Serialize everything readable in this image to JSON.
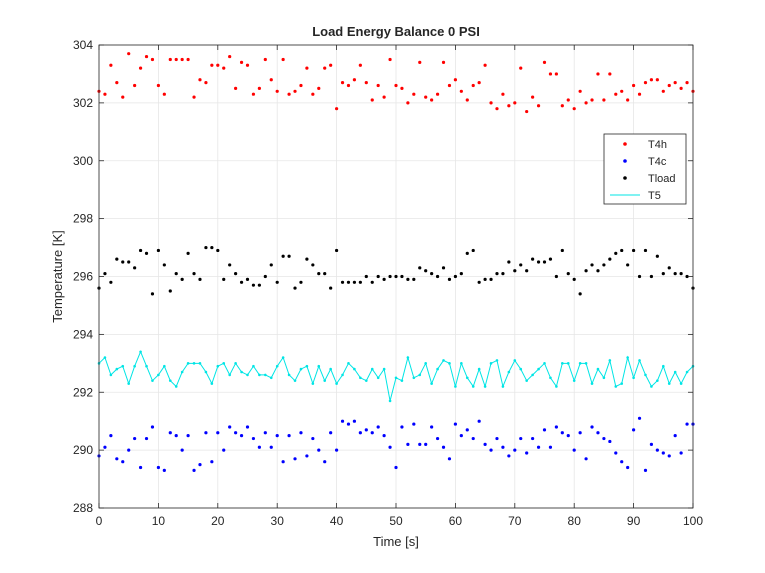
{
  "chart_data": {
    "type": "scatter",
    "title": "Load Energy Balance 0 PSI",
    "xlabel": "Time [s]",
    "ylabel": "Temperature [K]",
    "xlim": [
      0,
      100
    ],
    "ylim": [
      288,
      304
    ],
    "xticks": [
      0,
      10,
      20,
      30,
      40,
      50,
      60,
      70,
      80,
      90,
      100
    ],
    "yticks": [
      288,
      290,
      292,
      294,
      296,
      298,
      300,
      302,
      304
    ],
    "grid": true,
    "legend_position": "top-right",
    "x": [
      0,
      1,
      2,
      3,
      4,
      5,
      6,
      7,
      8,
      9,
      10,
      11,
      12,
      13,
      14,
      15,
      16,
      17,
      18,
      19,
      20,
      21,
      22,
      23,
      24,
      25,
      26,
      27,
      28,
      29,
      30,
      31,
      32,
      33,
      34,
      35,
      36,
      37,
      38,
      39,
      40,
      41,
      42,
      43,
      44,
      45,
      46,
      47,
      48,
      49,
      50,
      51,
      52,
      53,
      54,
      55,
      56,
      57,
      58,
      59,
      60,
      61,
      62,
      63,
      64,
      65,
      66,
      67,
      68,
      69,
      70,
      71,
      72,
      73,
      74,
      75,
      76,
      77,
      78,
      79,
      80,
      81,
      82,
      83,
      84,
      85,
      86,
      87,
      88,
      89,
      90,
      91,
      92,
      93,
      94,
      95,
      96,
      97,
      98,
      99,
      100
    ],
    "series": [
      {
        "name": "T4h",
        "style": "dots",
        "color": "#ff0000",
        "values": [
          302.4,
          302.3,
          303.3,
          302.7,
          302.2,
          303.7,
          302.6,
          303.2,
          303.6,
          303.5,
          302.6,
          302.3,
          303.5,
          303.5,
          303.5,
          303.5,
          302.2,
          302.8,
          302.7,
          303.3,
          303.3,
          303.2,
          303.6,
          302.5,
          303.4,
          303.3,
          302.3,
          302.5,
          303.5,
          302.8,
          302.4,
          303.5,
          302.3,
          302.4,
          302.6,
          303.2,
          302.3,
          302.5,
          303.2,
          303.3,
          301.8,
          302.7,
          302.6,
          302.8,
          303.3,
          302.7,
          302.1,
          302.6,
          302.2,
          303.5,
          302.6,
          302.5,
          302.0,
          302.3,
          303.4,
          302.2,
          302.1,
          302.3,
          303.4,
          302.6,
          302.8,
          302.4,
          302.1,
          302.6,
          302.7,
          303.3,
          302.0,
          301.8,
          302.3,
          301.9,
          302.0,
          303.2,
          301.7,
          302.2,
          301.9,
          303.4,
          303.0,
          303.0,
          301.9,
          302.1,
          301.8,
          302.4,
          302.0,
          302.1,
          303.0,
          302.1,
          303.0,
          302.3,
          302.4,
          302.1,
          302.6,
          302.3,
          302.7,
          302.8,
          302.8,
          302.4,
          302.6,
          302.7,
          302.5,
          302.7,
          302.4
        ]
      },
      {
        "name": "T4c",
        "style": "dots",
        "color": "#0000ff",
        "values": [
          289.8,
          290.1,
          290.5,
          289.7,
          289.6,
          290.0,
          290.4,
          289.4,
          290.4,
          290.8,
          289.4,
          289.3,
          290.6,
          290.5,
          290.0,
          290.5,
          289.3,
          289.5,
          290.6,
          289.6,
          290.6,
          290.0,
          290.8,
          290.6,
          290.5,
          290.8,
          290.4,
          290.1,
          290.6,
          290.1,
          290.5,
          289.6,
          290.5,
          289.7,
          290.6,
          289.8,
          290.4,
          290.0,
          289.6,
          290.6,
          290.0,
          291.0,
          290.9,
          291.0,
          290.6,
          290.7,
          290.6,
          290.8,
          290.5,
          290.1,
          289.4,
          290.8,
          290.2,
          290.9,
          290.2,
          290.2,
          290.8,
          290.4,
          290.1,
          289.7,
          290.9,
          290.5,
          290.7,
          290.4,
          291.0,
          290.2,
          290.0,
          290.4,
          290.1,
          289.8,
          290.0,
          290.4,
          289.9,
          290.4,
          290.1,
          290.7,
          290.1,
          290.8,
          290.6,
          290.5,
          290.0,
          290.6,
          289.7,
          290.8,
          290.6,
          290.4,
          290.3,
          289.9,
          289.6,
          289.4,
          290.7,
          291.1,
          289.3,
          290.2,
          290.0,
          289.9,
          289.8,
          290.5,
          289.9,
          290.9,
          290.9
        ]
      },
      {
        "name": "Tload",
        "style": "dots",
        "color": "#000000",
        "values": [
          295.6,
          296.1,
          295.8,
          296.6,
          296.5,
          296.5,
          296.3,
          296.9,
          296.8,
          295.4,
          296.9,
          296.4,
          295.5,
          296.1,
          295.9,
          296.8,
          296.1,
          295.9,
          297.0,
          297.0,
          296.9,
          295.9,
          296.4,
          296.1,
          295.8,
          295.9,
          295.7,
          295.7,
          296.0,
          296.4,
          295.8,
          296.7,
          296.7,
          295.6,
          295.8,
          296.6,
          296.4,
          296.1,
          296.1,
          295.6,
          296.9,
          295.8,
          295.8,
          295.8,
          295.8,
          296.0,
          295.8,
          296.0,
          295.9,
          296.0,
          296.0,
          296.0,
          295.9,
          295.9,
          296.3,
          296.2,
          296.1,
          296.0,
          296.3,
          295.9,
          296.0,
          296.1,
          296.8,
          296.9,
          295.8,
          295.9,
          295.9,
          296.1,
          296.1,
          296.5,
          296.2,
          296.4,
          296.2,
          296.6,
          296.5,
          296.5,
          296.6,
          296.0,
          296.9,
          296.1,
          295.9,
          295.4,
          296.2,
          296.4,
          296.2,
          296.4,
          296.6,
          296.8,
          296.9,
          296.4,
          296.9,
          296.0,
          296.9,
          296.0,
          296.7,
          296.1,
          296.3,
          296.1,
          296.1,
          296.0,
          295.6
        ]
      },
      {
        "name": "T5",
        "style": "line-markers",
        "color": "#00e5e5",
        "values": [
          293.0,
          293.2,
          292.6,
          292.8,
          292.9,
          292.3,
          292.9,
          293.4,
          292.9,
          292.4,
          292.6,
          292.9,
          292.4,
          292.2,
          292.7,
          293.0,
          293.0,
          293.0,
          292.7,
          292.3,
          292.9,
          293.0,
          292.6,
          293.0,
          292.7,
          292.6,
          292.9,
          292.6,
          292.6,
          292.5,
          292.9,
          293.2,
          292.6,
          292.4,
          292.8,
          292.9,
          292.3,
          292.9,
          292.4,
          292.8,
          292.3,
          292.6,
          293.0,
          292.8,
          292.5,
          292.4,
          292.8,
          292.5,
          292.8,
          291.7,
          292.5,
          292.4,
          293.2,
          292.5,
          292.6,
          293.0,
          292.3,
          292.8,
          293.1,
          293.0,
          292.2,
          293.0,
          292.5,
          292.2,
          292.8,
          292.2,
          293.0,
          293.1,
          292.2,
          292.7,
          293.1,
          292.8,
          292.4,
          292.6,
          292.8,
          293.0,
          292.5,
          292.2,
          293.0,
          293.0,
          292.4,
          293.0,
          293.0,
          292.3,
          292.8,
          292.5,
          293.1,
          292.2,
          292.3,
          293.2,
          292.5,
          293.1,
          292.6,
          292.2,
          292.4,
          292.9,
          292.3,
          292.7,
          292.3,
          292.7,
          292.9
        ]
      }
    ]
  }
}
